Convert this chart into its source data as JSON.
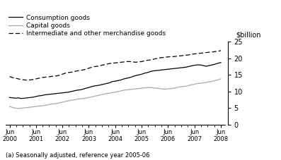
{
  "ylabel": "$billion",
  "footnote": "(a) Seasonally adjusted, reference year 2005-06",
  "ylim": [
    0,
    25
  ],
  "yticks": [
    0,
    5,
    10,
    15,
    20,
    25
  ],
  "x_labels": [
    "Jun\n2000",
    "Jun\n2001",
    "Jun\n2002",
    "Jun\n2003",
    "Jun\n2004",
    "Jun\n2005",
    "Jun\n2006",
    "Jun\n2007",
    "Jun\n2008"
  ],
  "legend": [
    {
      "label": "Consumption goods",
      "color": "#000000",
      "linestyle": "-"
    },
    {
      "label": "Capital goods",
      "color": "#aaaaaa",
      "linestyle": "-"
    },
    {
      "label": "Intermediate and other merchandise goods",
      "color": "#000000",
      "linestyle": "--"
    }
  ],
  "consumption_goods": [
    8.2,
    8.1,
    8.0,
    8.1,
    7.9,
    8.0,
    8.1,
    8.2,
    8.3,
    8.5,
    8.7,
    8.8,
    9.0,
    9.1,
    9.2,
    9.3,
    9.4,
    9.5,
    9.6,
    9.7,
    9.8,
    10.0,
    10.2,
    10.4,
    10.5,
    10.7,
    11.0,
    11.2,
    11.5,
    11.7,
    11.8,
    12.0,
    12.2,
    12.4,
    12.6,
    13.0,
    13.1,
    13.3,
    13.5,
    13.8,
    14.0,
    14.2,
    14.5,
    14.8,
    15.0,
    15.2,
    15.5,
    15.7,
    16.0,
    16.2,
    16.3,
    16.4,
    16.5,
    16.6,
    16.7,
    16.8,
    16.9,
    17.0,
    17.1,
    17.2,
    17.3,
    17.5,
    17.7,
    17.9,
    18.0,
    18.0,
    17.8,
    17.6,
    17.8,
    18.0,
    18.2,
    18.5,
    18.7
  ],
  "capital_goods": [
    5.5,
    5.2,
    5.0,
    4.9,
    5.0,
    5.1,
    5.2,
    5.3,
    5.4,
    5.5,
    5.6,
    5.7,
    5.8,
    6.0,
    6.2,
    6.3,
    6.4,
    6.6,
    6.8,
    7.0,
    7.2,
    7.4,
    7.5,
    7.7,
    7.8,
    7.9,
    8.0,
    8.2,
    8.4,
    8.6,
    8.8,
    9.0,
    9.2,
    9.4,
    9.5,
    9.7,
    9.8,
    10.0,
    10.2,
    10.4,
    10.5,
    10.6,
    10.7,
    10.8,
    10.9,
    11.0,
    11.1,
    11.2,
    11.2,
    11.1,
    11.0,
    10.9,
    10.8,
    10.7,
    10.8,
    10.9,
    11.0,
    11.2,
    11.4,
    11.5,
    11.6,
    11.8,
    12.0,
    12.2,
    12.4,
    12.5,
    12.6,
    12.7,
    12.9,
    13.1,
    13.3,
    13.5,
    13.8
  ],
  "intermediate_goods": [
    14.5,
    14.2,
    14.0,
    13.8,
    13.6,
    13.5,
    13.4,
    13.5,
    13.6,
    13.8,
    14.0,
    14.2,
    14.3,
    14.4,
    14.5,
    14.6,
    14.7,
    14.9,
    15.2,
    15.5,
    15.7,
    15.8,
    16.0,
    16.2,
    16.3,
    16.5,
    16.7,
    17.0,
    17.3,
    17.5,
    17.6,
    17.8,
    18.0,
    18.2,
    18.4,
    18.5,
    18.6,
    18.7,
    18.8,
    18.9,
    19.0,
    19.0,
    18.9,
    18.8,
    18.9,
    19.0,
    19.2,
    19.4,
    19.5,
    19.7,
    19.9,
    20.1,
    20.2,
    20.3,
    20.4,
    20.5,
    20.5,
    20.6,
    20.7,
    20.8,
    20.9,
    21.0,
    21.2,
    21.3,
    21.4,
    21.5,
    21.6,
    21.7,
    21.8,
    21.9,
    22.0,
    22.1,
    22.3
  ]
}
